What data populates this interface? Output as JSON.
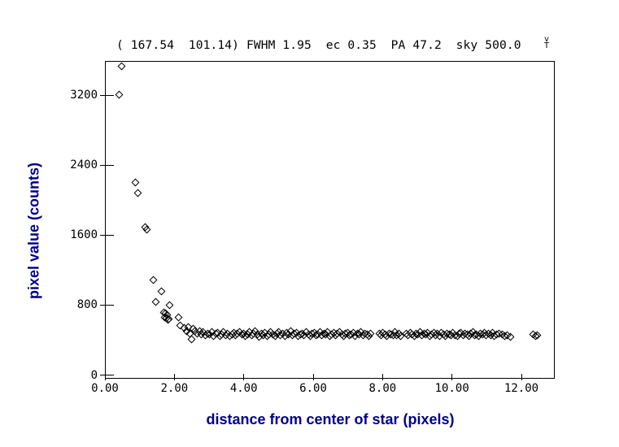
{
  "header": {
    "title": "( 167.54  101.14) FWHM 1.95  ec 0.35  PA 47.2  sky 500.0",
    "cursor_glyph_top": "v",
    "cursor_glyph_bottom": "T"
  },
  "colors": {
    "axis_title": "#00008B",
    "foreground": "#000000",
    "background": "#ffffff"
  },
  "axes": {
    "x_tick_labels": [
      "0.00",
      "2.00",
      "4.00",
      "6.00",
      "8.00",
      "10.00",
      "12.00"
    ],
    "y_tick_labels": [
      "0",
      "800",
      "1600",
      "2400",
      "3200"
    ]
  },
  "chart_data": {
    "type": "scatter",
    "title": "( 167.54  101.14) FWHM 1.95  ec 0.35  PA 47.2  sky 500.0",
    "xlabel": "distance from center of star (pixels)",
    "ylabel": "pixel value (counts)",
    "xlim": [
      0,
      12.96
    ],
    "ylim": [
      0,
      3590
    ],
    "xticks": [
      0,
      2,
      4,
      6,
      8,
      10,
      12
    ],
    "yticks": [
      0,
      800,
      1600,
      2400,
      3200
    ],
    "grid": false,
    "legend": false,
    "marker": "open-diamond",
    "readout": {
      "x_center": 167.54,
      "y_center": 101.14,
      "fwhm": 1.95,
      "ellipticity": 0.35,
      "position_angle": 47.2,
      "sky": 500.0
    },
    "points": [
      [
        0.4,
        3210
      ],
      [
        0.47,
        3535
      ],
      [
        0.89,
        2200
      ],
      [
        0.94,
        2080
      ],
      [
        1.17,
        1690
      ],
      [
        1.21,
        1665
      ],
      [
        1.39,
        1085
      ],
      [
        1.47,
        835
      ],
      [
        1.64,
        958
      ],
      [
        1.7,
        716
      ],
      [
        1.72,
        662
      ],
      [
        1.74,
        706
      ],
      [
        1.78,
        652
      ],
      [
        1.79,
        690
      ],
      [
        1.82,
        628
      ],
      [
        1.85,
        640
      ],
      [
        1.87,
        798
      ],
      [
        2.13,
        658
      ],
      [
        2.17,
        566
      ],
      [
        2.29,
        537
      ],
      [
        2.36,
        500
      ],
      [
        2.41,
        548
      ],
      [
        2.44,
        470
      ],
      [
        2.49,
        410
      ],
      [
        2.55,
        528
      ],
      [
        2.6,
        498
      ],
      [
        2.66,
        472
      ],
      [
        2.72,
        505
      ],
      [
        2.78,
        462
      ],
      [
        2.83,
        488
      ],
      [
        2.9,
        455
      ],
      [
        2.96,
        478
      ],
      [
        3.02,
        465
      ],
      [
        3.08,
        492
      ],
      [
        3.13,
        450
      ],
      [
        3.19,
        470
      ],
      [
        3.25,
        483
      ],
      [
        3.31,
        447
      ],
      [
        3.36,
        468
      ],
      [
        3.42,
        490
      ],
      [
        3.47,
        458
      ],
      [
        3.53,
        475
      ],
      [
        3.6,
        444
      ],
      [
        3.66,
        462
      ],
      [
        3.71,
        486
      ],
      [
        3.77,
        452
      ],
      [
        3.82,
        470
      ],
      [
        3.88,
        495
      ],
      [
        3.94,
        460
      ],
      [
        4.0,
        478
      ],
      [
        4.05,
        446
      ],
      [
        4.11,
        468
      ],
      [
        4.16,
        488
      ],
      [
        4.22,
        455
      ],
      [
        4.28,
        472
      ],
      [
        4.33,
        500
      ],
      [
        4.39,
        462
      ],
      [
        4.44,
        440
      ],
      [
        4.5,
        476
      ],
      [
        4.56,
        458
      ],
      [
        4.61,
        484
      ],
      [
        4.67,
        450
      ],
      [
        4.73,
        468
      ],
      [
        4.78,
        492
      ],
      [
        4.84,
        461
      ],
      [
        4.9,
        443
      ],
      [
        4.95,
        474
      ],
      [
        5.01,
        488
      ],
      [
        5.06,
        456
      ],
      [
        5.12,
        470
      ],
      [
        5.18,
        448
      ],
      [
        5.24,
        482
      ],
      [
        5.29,
        465
      ],
      [
        5.35,
        498
      ],
      [
        5.41,
        453
      ],
      [
        5.46,
        471
      ],
      [
        5.52,
        486
      ],
      [
        5.57,
        444
      ],
      [
        5.63,
        466
      ],
      [
        5.69,
        478
      ],
      [
        5.74,
        455
      ],
      [
        5.8,
        490
      ],
      [
        5.86,
        462
      ],
      [
        5.91,
        447
      ],
      [
        5.97,
        473
      ],
      [
        6.03,
        485
      ],
      [
        6.08,
        458
      ],
      [
        6.14,
        469
      ],
      [
        6.2,
        494
      ],
      [
        6.25,
        451
      ],
      [
        6.31,
        476
      ],
      [
        6.36,
        463
      ],
      [
        6.42,
        488
      ],
      [
        6.48,
        445
      ],
      [
        6.53,
        467
      ],
      [
        6.59,
        480
      ],
      [
        6.65,
        456
      ],
      [
        6.7,
        472
      ],
      [
        6.76,
        491
      ],
      [
        6.82,
        460
      ],
      [
        6.87,
        442
      ],
      [
        6.93,
        475
      ],
      [
        6.99,
        487
      ],
      [
        7.04,
        454
      ],
      [
        7.1,
        468
      ],
      [
        7.15,
        483
      ],
      [
        7.21,
        449
      ],
      [
        7.27,
        471
      ],
      [
        7.32,
        460
      ],
      [
        7.38,
        489
      ],
      [
        7.44,
        452
      ],
      [
        7.49,
        474
      ],
      [
        7.55,
        465
      ],
      [
        7.61,
        446
      ],
      [
        7.66,
        478
      ],
      [
        7.9,
        470
      ],
      [
        7.96,
        455
      ],
      [
        8.01,
        484
      ],
      [
        8.07,
        462
      ],
      [
        8.13,
        448
      ],
      [
        8.18,
        476
      ],
      [
        8.24,
        467
      ],
      [
        8.3,
        452
      ],
      [
        8.35,
        488
      ],
      [
        8.41,
        459
      ],
      [
        8.47,
        473
      ],
      [
        8.52,
        445
      ],
      [
        8.68,
        470
      ],
      [
        8.74,
        457
      ],
      [
        8.79,
        481
      ],
      [
        8.85,
        463
      ],
      [
        8.91,
        449
      ],
      [
        8.96,
        475
      ],
      [
        9.02,
        466
      ],
      [
        9.08,
        490
      ],
      [
        9.13,
        453
      ],
      [
        9.19,
        472
      ],
      [
        9.24,
        461
      ],
      [
        9.3,
        484
      ],
      [
        9.36,
        447
      ],
      [
        9.41,
        469
      ],
      [
        9.47,
        479
      ],
      [
        9.53,
        456
      ],
      [
        9.58,
        471
      ],
      [
        9.64,
        443
      ],
      [
        9.7,
        487
      ],
      [
        9.75,
        464
      ],
      [
        9.81,
        450
      ],
      [
        9.86,
        477
      ],
      [
        9.92,
        468
      ],
      [
        9.98,
        455
      ],
      [
        10.03,
        482
      ],
      [
        10.09,
        459
      ],
      [
        10.15,
        446
      ],
      [
        10.2,
        473
      ],
      [
        10.26,
        486
      ],
      [
        10.32,
        452
      ],
      [
        10.37,
        470
      ],
      [
        10.43,
        463
      ],
      [
        10.49,
        448
      ],
      [
        10.54,
        478
      ],
      [
        10.6,
        491
      ],
      [
        10.65,
        457
      ],
      [
        10.71,
        469
      ],
      [
        10.77,
        444
      ],
      [
        10.82,
        475
      ],
      [
        10.88,
        462
      ],
      [
        10.94,
        485
      ],
      [
        10.99,
        453
      ],
      [
        11.05,
        471
      ],
      [
        11.11,
        458
      ],
      [
        11.16,
        480
      ],
      [
        11.22,
        449
      ],
      [
        11.28,
        466
      ],
      [
        11.35,
        474
      ],
      [
        11.45,
        462
      ],
      [
        11.52,
        450
      ],
      [
        11.6,
        456
      ],
      [
        11.68,
        441
      ],
      [
        12.33,
        460
      ],
      [
        12.4,
        448
      ],
      [
        12.46,
        456
      ]
    ]
  }
}
